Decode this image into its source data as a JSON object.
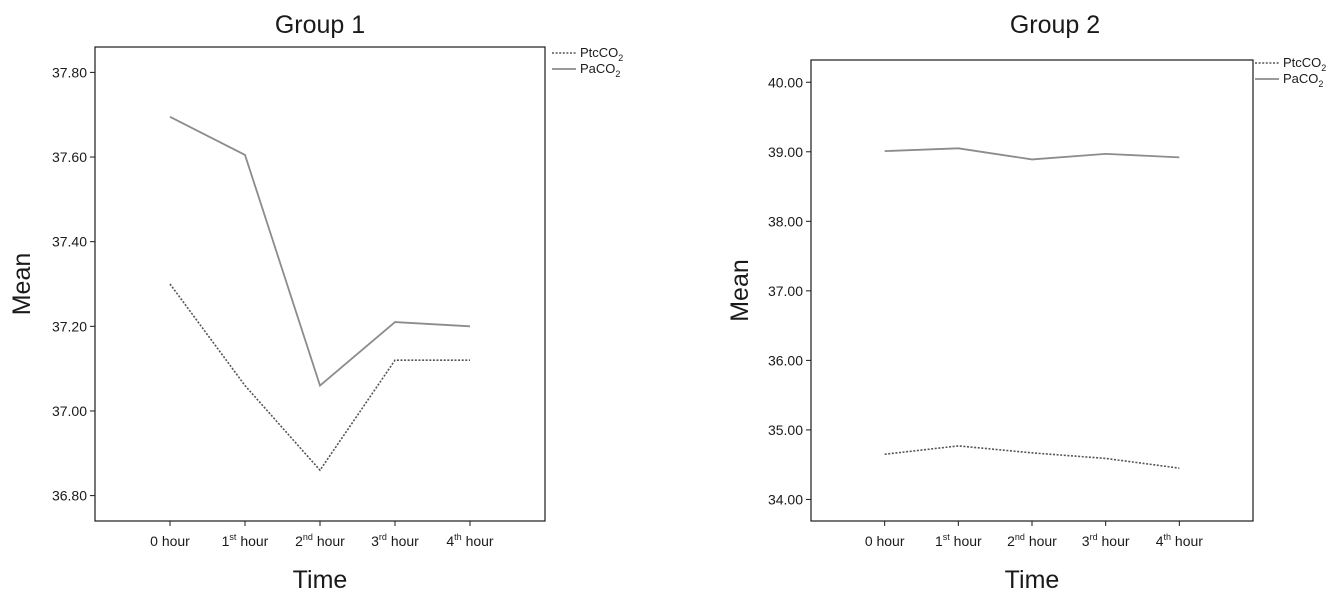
{
  "chart_data": [
    {
      "type": "line",
      "title": "Group 1",
      "xlabel": "Time",
      "ylabel": "Mean",
      "categories": [
        {
          "base": "0 hour",
          "sup": "",
          "rest": ""
        },
        {
          "base": "1",
          "sup": "st",
          "rest": " hour"
        },
        {
          "base": "2",
          "sup": "nd",
          "rest": " hour"
        },
        {
          "base": "3",
          "sup": "rd",
          "rest": " hour"
        },
        {
          "base": "4",
          "sup": "th",
          "rest": " hour"
        }
      ],
      "ylim": [
        36.74,
        37.86
      ],
      "yticks": [
        "36.80",
        "37.00",
        "37.20",
        "37.40",
        "37.60",
        "37.80"
      ],
      "series": [
        {
          "name": "PtcCO2",
          "name_base": "PtcCO",
          "name_sub": "2",
          "style": "dotted",
          "color": "#555555",
          "values": [
            37.3,
            37.06,
            36.86,
            37.12,
            37.12
          ]
        },
        {
          "name": "PaCO2",
          "name_base": "PaCO",
          "name_sub": "2",
          "style": "solid",
          "color": "#8c8c8c",
          "values": [
            37.695,
            37.605,
            37.06,
            37.21,
            37.2
          ]
        }
      ],
      "legend": "top-right"
    },
    {
      "type": "line",
      "title": "Group 2",
      "xlabel": "Time",
      "ylabel": "Mean",
      "categories": [
        {
          "base": "0 hour",
          "sup": "",
          "rest": ""
        },
        {
          "base": "1",
          "sup": "st",
          "rest": " hour"
        },
        {
          "base": "2",
          "sup": "nd",
          "rest": " hour"
        },
        {
          "base": "3",
          "sup": "rd",
          "rest": " hour"
        },
        {
          "base": "4",
          "sup": "th",
          "rest": " hour"
        }
      ],
      "ylim": [
        33.69,
        40.32
      ],
      "yticks": [
        "34.00",
        "35.00",
        "36.00",
        "37.00",
        "38.00",
        "39.00",
        "40.00"
      ],
      "series": [
        {
          "name": "PtcCO2",
          "name_base": "PtcCO",
          "name_sub": "2",
          "style": "dotted",
          "color": "#555555",
          "values": [
            34.65,
            34.77,
            34.67,
            34.59,
            34.45
          ]
        },
        {
          "name": "PaCO2",
          "name_base": "PaCO",
          "name_sub": "2",
          "style": "solid",
          "color": "#8c8c8c",
          "values": [
            39.01,
            39.05,
            38.89,
            38.97,
            38.92
          ]
        }
      ],
      "legend": "top-right"
    }
  ]
}
